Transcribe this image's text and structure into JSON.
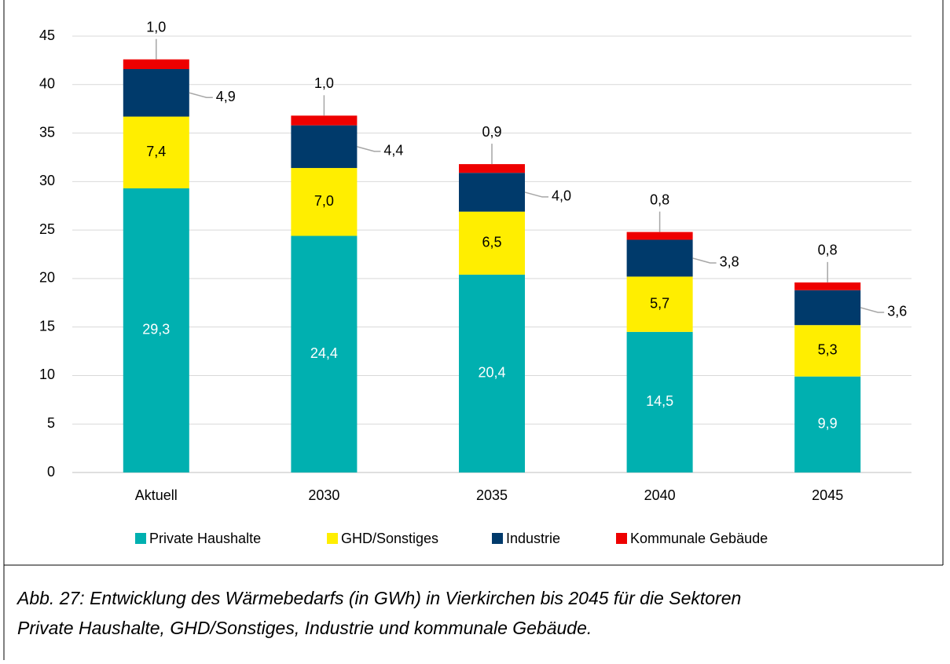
{
  "chart_data": {
    "type": "bar",
    "stacked": true,
    "categories": [
      "Aktuell",
      "2030",
      "2035",
      "2040",
      "2045"
    ],
    "series": [
      {
        "name": "Private Haushalte",
        "color": "#00b0b0",
        "values": [
          29.3,
          24.4,
          20.4,
          14.5,
          9.9
        ],
        "value_labels": [
          "29,3",
          "24,4",
          "20,4",
          "14,5",
          "9,9"
        ]
      },
      {
        "name": "GHD/Sonstiges",
        "color": "#ffee00",
        "values": [
          7.4,
          7.0,
          6.5,
          5.7,
          5.3
        ],
        "value_labels": [
          "7,4",
          "7,0",
          "6,5",
          "5,7",
          "5,3"
        ]
      },
      {
        "name": "Industrie",
        "color": "#003a6b",
        "values": [
          4.9,
          4.4,
          4.0,
          3.8,
          3.6
        ],
        "value_labels": [
          "4,9",
          "4,4",
          "4,0",
          "3,8",
          "3,6"
        ]
      },
      {
        "name": "Kommunale Gebäude",
        "color": "#ee0000",
        "values": [
          1.0,
          1.0,
          0.9,
          0.8,
          0.8
        ],
        "value_labels": [
          "1,0",
          "1,0",
          "0,9",
          "0,8",
          "0,8"
        ]
      }
    ],
    "ylim": [
      0,
      45
    ],
    "yticks": [
      0,
      5,
      10,
      15,
      20,
      25,
      30,
      35,
      40,
      45
    ],
    "grid": true,
    "legend": "bottom"
  },
  "caption": [
    "Abb. 27: Entwicklung des Wärmebedarfs (in GWh) in Vierkirchen bis 2045 für die Sektoren",
    "Private Haushalte, GHD/Sonstiges, Industrie und kommunale Gebäude."
  ]
}
